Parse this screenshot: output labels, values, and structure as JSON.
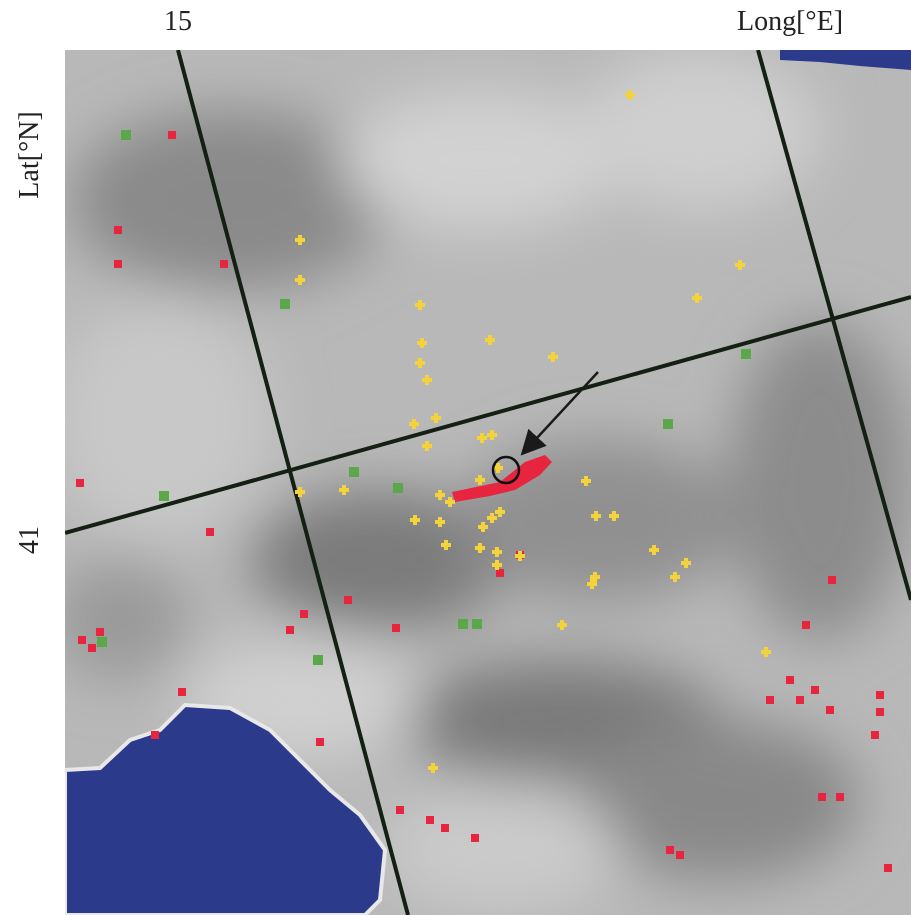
{
  "labels": {
    "top_left": "15",
    "top_right": "Long[°E]",
    "left_top": "Lat[°N]",
    "left_middle": "41"
  }
}
